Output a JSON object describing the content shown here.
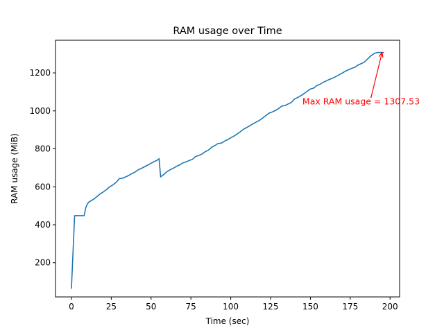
{
  "chart_data": {
    "type": "line",
    "title": "RAM usage over Time",
    "xlabel": "Time (sec)",
    "ylabel": "RAM usage (MiB)",
    "xlim": [
      -10,
      206
    ],
    "ylim": [
      20,
      1372
    ],
    "xticks": [
      0,
      25,
      50,
      75,
      100,
      125,
      150,
      175,
      200
    ],
    "yticks": [
      200,
      400,
      600,
      800,
      1000,
      1200
    ],
    "grid": false,
    "series": [
      {
        "color": "#1f77b4",
        "x": [
          0,
          2,
          4,
          6,
          8,
          9,
          10,
          11,
          12,
          14,
          16,
          18,
          20,
          22,
          24,
          26,
          28,
          30,
          32,
          34,
          36,
          38,
          40,
          42,
          44,
          46,
          48,
          50,
          52,
          54,
          55,
          56,
          58,
          60,
          62,
          64,
          66,
          68,
          70,
          72,
          74,
          76,
          78,
          80,
          82,
          84,
          86,
          88,
          90,
          92,
          94,
          96,
          98,
          100,
          102,
          104,
          106,
          108,
          110,
          112,
          114,
          116,
          118,
          120,
          122,
          124,
          126,
          128,
          130,
          132,
          134,
          136,
          138,
          140,
          142,
          144,
          146,
          148,
          150,
          152,
          154,
          156,
          158,
          160,
          162,
          164,
          166,
          168,
          170,
          172,
          174,
          176,
          178,
          180,
          182,
          184,
          186,
          188,
          190,
          192,
          194,
          196
        ],
        "y": [
          65,
          448,
          448,
          448,
          448,
          490,
          510,
          520,
          525,
          535,
          548,
          563,
          573,
          585,
          600,
          610,
          623,
          643,
          645,
          652,
          660,
          670,
          678,
          690,
          697,
          706,
          715,
          724,
          733,
          741,
          748,
          652,
          665,
          680,
          690,
          698,
          708,
          716,
          726,
          731,
          739,
          745,
          760,
          765,
          773,
          785,
          793,
          808,
          817,
          828,
          830,
          840,
          848,
          858,
          867,
          878,
          890,
          903,
          912,
          922,
          932,
          941,
          950,
          962,
          975,
          988,
          994,
          1002,
          1012,
          1025,
          1028,
          1036,
          1044,
          1062,
          1070,
          1080,
          1091,
          1103,
          1115,
          1120,
          1133,
          1140,
          1150,
          1158,
          1166,
          1172,
          1181,
          1190,
          1199,
          1209,
          1217,
          1224,
          1230,
          1242,
          1249,
          1258,
          1274,
          1290,
          1302,
          1307.53,
          1307.53,
          1307.53
        ]
      }
    ],
    "annotation": {
      "text": "Max RAM usage = 1307.53",
      "color": "#ff0000",
      "text_x": 145,
      "text_y": 1015,
      "arrow_from": [
        188,
        1068
      ],
      "arrow_to": [
        195,
        1307.53
      ]
    }
  }
}
